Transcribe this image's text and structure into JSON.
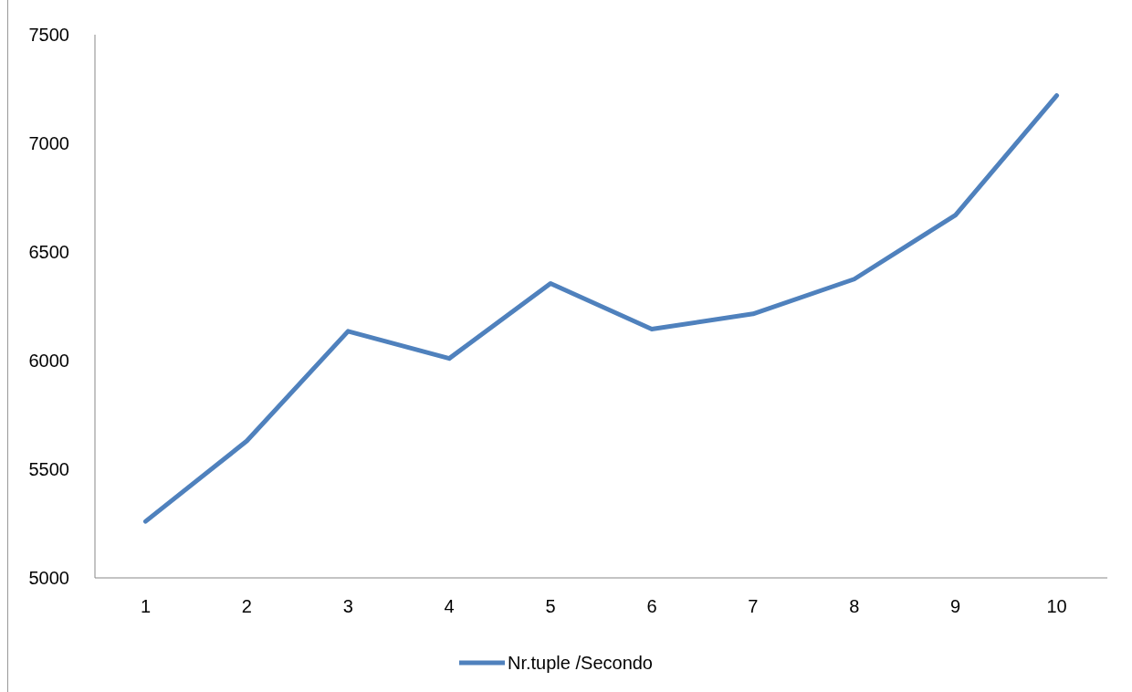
{
  "chart_data": {
    "type": "line",
    "categories": [
      "1",
      "2",
      "3",
      "4",
      "5",
      "6",
      "7",
      "8",
      "9",
      "10"
    ],
    "series": [
      {
        "name": "Nr.tuple /Secondo",
        "color": "#4f81bd",
        "values": [
          5260,
          5630,
          6135,
          6010,
          6355,
          6145,
          6215,
          6375,
          6670,
          7220
        ]
      }
    ],
    "ylim": [
      5000,
      7500
    ],
    "yticks": [
      5000,
      5500,
      6000,
      6500,
      7000,
      7500
    ],
    "grid": false,
    "legend": "bottom",
    "marker": "none",
    "line_style": "solid"
  }
}
